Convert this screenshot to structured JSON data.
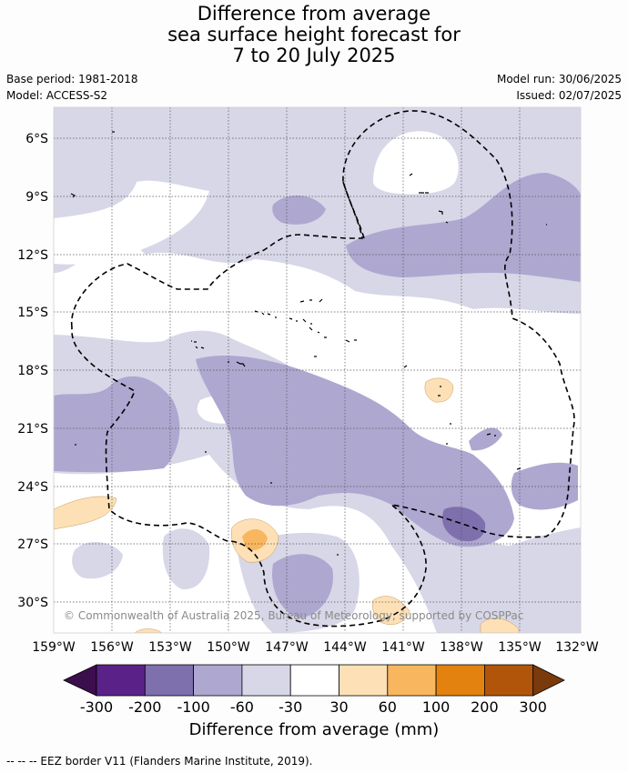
{
  "title": {
    "line1": "Difference from average",
    "line2": "sea surface height forecast for",
    "line3": "7 to 20 July 2025"
  },
  "meta": {
    "base_period": "Base period: 1981-2018",
    "model": "Model: ACCESS-S2",
    "model_run": "Model run: 30/06/2025",
    "issued": "Issued: 02/07/2025"
  },
  "map": {
    "lat_labels": [
      "6°S",
      "9°S",
      "12°S",
      "15°S",
      "18°S",
      "21°S",
      "24°S",
      "27°S",
      "30°S"
    ],
    "lon_labels": [
      "159°W",
      "156°W",
      "153°W",
      "150°W",
      "147°W",
      "144°W",
      "141°W",
      "138°W",
      "135°W",
      "132°W"
    ],
    "copyright": "© Commonwealth of Australia 2025, Bureau of Meteorology, supported by COSPPac"
  },
  "colorbar": {
    "title": "Difference from average (mm)",
    "ticks": [
      "-300",
      "-200",
      "-100",
      "-60",
      "-30",
      "30",
      "60",
      "100",
      "200",
      "300"
    ],
    "colors": {
      "under": "#3c0e4e",
      "bins": [
        "#5a2288",
        "#7e6fad",
        "#aea7d0",
        "#d7d7e8",
        "#ffffff",
        "#fde0b5",
        "#f8b65e",
        "#e3820f",
        "#b1550b"
      ],
      "over": "#7b3a0c"
    }
  },
  "footnote": "--  --  -- EEZ border V11 (Flanders Marine Institute, 2019)."
}
